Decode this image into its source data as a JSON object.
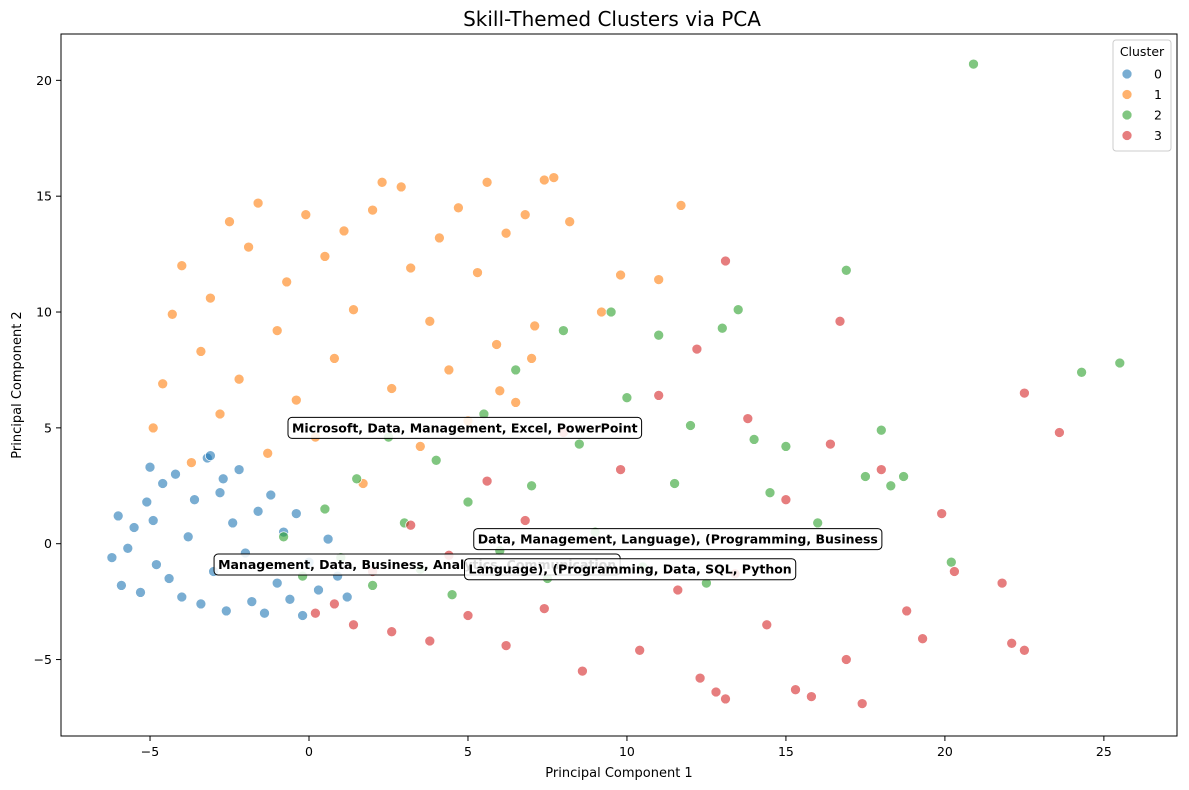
{
  "chart_data": {
    "type": "scatter",
    "title": "Skill-Themed Clusters via PCA",
    "xlabel": "Principal Component 1",
    "ylabel": "Principal Component 2",
    "xlim": [
      -7.8,
      27.3
    ],
    "ylim": [
      -8.3,
      22.0
    ],
    "xticks": [
      -5,
      0,
      5,
      10,
      15,
      20,
      25
    ],
    "yticks": [
      -5,
      0,
      5,
      10,
      15,
      20
    ],
    "xtick_labels": [
      "−5",
      "0",
      "5",
      "10",
      "15",
      "20",
      "25"
    ],
    "ytick_labels": [
      "−5",
      "0",
      "5",
      "10",
      "15",
      "20"
    ],
    "grid": false,
    "legend": {
      "title": "Cluster",
      "placement": "top-right",
      "entries": [
        "0",
        "1",
        "2",
        "3"
      ]
    },
    "series": [
      {
        "name": "0",
        "color": "#1f77b4",
        "points": [
          [
            -6.2,
            -0.6
          ],
          [
            -6.0,
            1.2
          ],
          [
            -5.9,
            -1.8
          ],
          [
            -5.7,
            -0.2
          ],
          [
            -5.5,
            0.7
          ],
          [
            -5.3,
            -2.1
          ],
          [
            -5.1,
            1.8
          ],
          [
            -5.0,
            3.3
          ],
          [
            -4.8,
            -0.9
          ],
          [
            -4.6,
            2.6
          ],
          [
            -4.4,
            -1.5
          ],
          [
            -4.2,
            3.0
          ],
          [
            -4.0,
            -2.3
          ],
          [
            -3.8,
            0.3
          ],
          [
            -3.6,
            1.9
          ],
          [
            -3.4,
            -2.6
          ],
          [
            -3.2,
            3.7
          ],
          [
            -3.0,
            -1.2
          ],
          [
            -2.8,
            2.2
          ],
          [
            -2.6,
            -2.9
          ],
          [
            -2.4,
            0.9
          ],
          [
            -2.2,
            3.2
          ],
          [
            -2.0,
            -0.4
          ],
          [
            -1.8,
            -2.5
          ],
          [
            -1.6,
            1.4
          ],
          [
            -1.4,
            -3.0
          ],
          [
            -1.2,
            2.1
          ],
          [
            -1.0,
            -1.7
          ],
          [
            -0.8,
            0.5
          ],
          [
            -0.6,
            -2.4
          ],
          [
            -0.4,
            1.3
          ],
          [
            -0.2,
            -3.1
          ],
          [
            0.0,
            -0.8
          ],
          [
            0.3,
            -2.0
          ],
          [
            0.6,
            0.2
          ],
          [
            0.9,
            -1.4
          ],
          [
            1.2,
            -2.3
          ],
          [
            -3.1,
            3.8
          ],
          [
            -2.7,
            2.8
          ],
          [
            -4.9,
            1.0
          ]
        ]
      },
      {
        "name": "1",
        "color": "#ff7f0e",
        "points": [
          [
            -4.9,
            5.0
          ],
          [
            -4.6,
            6.9
          ],
          [
            -4.3,
            9.9
          ],
          [
            -4.0,
            12.0
          ],
          [
            -3.7,
            3.5
          ],
          [
            -3.4,
            8.3
          ],
          [
            -3.1,
            10.6
          ],
          [
            -2.8,
            5.6
          ],
          [
            -2.5,
            13.9
          ],
          [
            -2.2,
            7.1
          ],
          [
            -1.9,
            12.8
          ],
          [
            -1.6,
            14.7
          ],
          [
            -1.3,
            3.9
          ],
          [
            -1.0,
            9.2
          ],
          [
            -0.7,
            11.3
          ],
          [
            -0.4,
            6.2
          ],
          [
            -0.1,
            14.2
          ],
          [
            0.2,
            4.6
          ],
          [
            0.5,
            12.4
          ],
          [
            0.8,
            8.0
          ],
          [
            1.1,
            13.5
          ],
          [
            1.4,
            10.1
          ],
          [
            1.7,
            2.6
          ],
          [
            2.0,
            14.4
          ],
          [
            2.3,
            15.6
          ],
          [
            2.6,
            6.7
          ],
          [
            2.9,
            15.4
          ],
          [
            3.2,
            11.9
          ],
          [
            3.5,
            4.2
          ],
          [
            3.8,
            9.6
          ],
          [
            4.1,
            13.2
          ],
          [
            4.4,
            7.5
          ],
          [
            4.7,
            14.5
          ],
          [
            5.0,
            5.3
          ],
          [
            5.3,
            11.7
          ],
          [
            5.6,
            15.6
          ],
          [
            5.9,
            8.6
          ],
          [
            6.2,
            13.4
          ],
          [
            6.5,
            6.1
          ],
          [
            6.8,
            14.2
          ],
          [
            7.1,
            9.4
          ],
          [
            7.4,
            15.7
          ],
          [
            7.7,
            15.8
          ],
          [
            8.2,
            13.9
          ],
          [
            9.2,
            10.0
          ],
          [
            9.8,
            11.6
          ],
          [
            11.7,
            14.6
          ],
          [
            11.0,
            11.4
          ],
          [
            7.0,
            8.0
          ],
          [
            6.0,
            6.6
          ]
        ]
      },
      {
        "name": "2",
        "color": "#2ca02c",
        "points": [
          [
            -0.8,
            0.3
          ],
          [
            -0.2,
            -1.4
          ],
          [
            0.5,
            1.5
          ],
          [
            1.0,
            -0.6
          ],
          [
            1.5,
            2.8
          ],
          [
            2.0,
            -1.8
          ],
          [
            2.5,
            4.6
          ],
          [
            3.0,
            0.9
          ],
          [
            3.5,
            -1.1
          ],
          [
            4.0,
            3.6
          ],
          [
            4.5,
            -2.2
          ],
          [
            5.0,
            1.8
          ],
          [
            5.5,
            5.6
          ],
          [
            6.0,
            -0.3
          ],
          [
            6.5,
            7.5
          ],
          [
            7.0,
            2.5
          ],
          [
            7.5,
            -1.5
          ],
          [
            8.0,
            9.2
          ],
          [
            8.5,
            4.3
          ],
          [
            9.0,
            0.5
          ],
          [
            9.5,
            10.0
          ],
          [
            10.0,
            6.3
          ],
          [
            10.5,
            -1.0
          ],
          [
            11.0,
            9.0
          ],
          [
            11.5,
            2.6
          ],
          [
            12.0,
            5.1
          ],
          [
            12.5,
            -1.7
          ],
          [
            13.0,
            9.3
          ],
          [
            13.5,
            10.1
          ],
          [
            14.0,
            4.5
          ],
          [
            14.5,
            2.2
          ],
          [
            15.0,
            4.2
          ],
          [
            16.0,
            0.9
          ],
          [
            16.9,
            11.8
          ],
          [
            17.5,
            2.9
          ],
          [
            18.0,
            4.9
          ],
          [
            18.3,
            2.5
          ],
          [
            18.7,
            2.9
          ],
          [
            20.2,
            -0.8
          ],
          [
            20.9,
            20.7
          ],
          [
            24.3,
            7.4
          ],
          [
            25.5,
            7.8
          ]
        ]
      },
      {
        "name": "3",
        "color": "#d62728",
        "points": [
          [
            0.2,
            -3.0
          ],
          [
            0.8,
            -2.6
          ],
          [
            1.4,
            -3.5
          ],
          [
            2.0,
            -1.2
          ],
          [
            2.6,
            -3.8
          ],
          [
            3.2,
            0.8
          ],
          [
            3.8,
            -4.2
          ],
          [
            4.4,
            -0.5
          ],
          [
            5.0,
            -3.1
          ],
          [
            5.6,
            2.7
          ],
          [
            6.2,
            -4.4
          ],
          [
            6.8,
            1.0
          ],
          [
            7.4,
            -2.8
          ],
          [
            8.0,
            4.8
          ],
          [
            8.6,
            -5.5
          ],
          [
            9.2,
            -0.9
          ],
          [
            9.8,
            3.2
          ],
          [
            10.4,
            -4.6
          ],
          [
            11.0,
            6.4
          ],
          [
            11.6,
            -2.0
          ],
          [
            12.2,
            8.4
          ],
          [
            12.8,
            -6.4
          ],
          [
            13.1,
            12.2
          ],
          [
            13.4,
            -1.3
          ],
          [
            13.8,
            5.4
          ],
          [
            14.4,
            -3.5
          ],
          [
            15.0,
            1.9
          ],
          [
            15.3,
            -6.3
          ],
          [
            15.8,
            -6.6
          ],
          [
            16.4,
            4.3
          ],
          [
            16.7,
            9.6
          ],
          [
            16.9,
            -5.0
          ],
          [
            17.4,
            -6.9
          ],
          [
            18.0,
            3.2
          ],
          [
            18.8,
            -2.9
          ],
          [
            19.3,
            -4.1
          ],
          [
            19.9,
            1.3
          ],
          [
            20.3,
            -1.2
          ],
          [
            21.8,
            -1.7
          ],
          [
            22.1,
            -4.3
          ],
          [
            22.5,
            -4.6
          ],
          [
            22.5,
            6.5
          ],
          [
            23.6,
            4.8
          ],
          [
            13.1,
            -6.7
          ],
          [
            12.3,
            -5.8
          ]
        ]
      }
    ],
    "annotations": [
      {
        "text": "Microsoft, Data, Management, Excel, PowerPoint",
        "x": 4.9,
        "y": 5.0
      },
      {
        "text": "Data, Management, Language), (Programming, Business",
        "x": 11.6,
        "y": 0.2
      },
      {
        "text": "Management, Data, Business, Analytics, Communication",
        "x": 3.4,
        "y": -0.9
      },
      {
        "text": "Language), (Programming, Data, SQL, Python",
        "x": 10.1,
        "y": -1.1
      }
    ]
  }
}
